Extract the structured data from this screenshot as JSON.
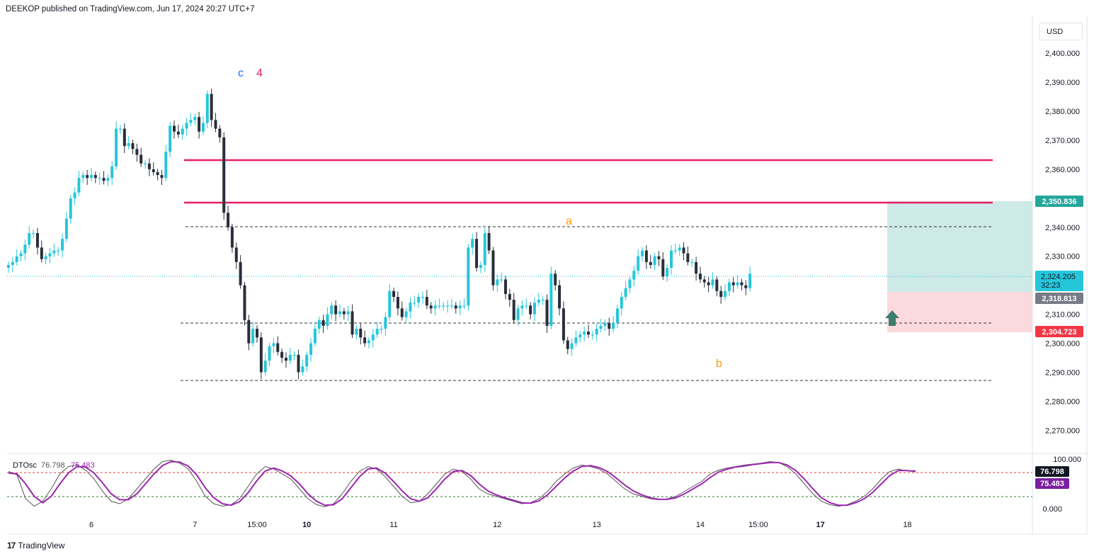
{
  "header": {
    "text": "DEEKOP published on TradingView.com, Jun 17, 2024 20:27 UTC+7"
  },
  "currency": "USD",
  "footer": {
    "logo_text": "TradingView",
    "logo_icon": "tradingview-logo-icon"
  },
  "colors": {
    "up": "#26c6da",
    "down": "#2a2e39",
    "resistance": "#e91e63",
    "target_zone": "#b2dfdb",
    "stop_zone": "#fbd5d9",
    "osc_k": "#555555",
    "osc_d": "#9c27b0",
    "wave_c": "#2962ff",
    "wave_4": "#e91e63",
    "wave_ab": "#ff9800"
  },
  "chart_data": [
    {
      "type": "candlestick",
      "title": "",
      "xlabel": "",
      "ylabel": "",
      "ylim": [
        2262,
        2413
      ],
      "grid": false,
      "y_ticks": [
        "2,400.000",
        "2,390.000",
        "2,380.000",
        "2,370.000",
        "2,360.000",
        "2,350.000",
        "2,340.000",
        "2,330.000",
        "2,310.000",
        "2,300.000",
        "2,290.000",
        "2,280.000",
        "2,270.000"
      ],
      "x_ticks": [
        {
          "label": "6",
          "i": 20,
          "bold": false
        },
        {
          "label": "7",
          "i": 45,
          "bold": false
        },
        {
          "label": "15:00",
          "i": 60,
          "bold": false
        },
        {
          "label": "10",
          "i": 72,
          "bold": true
        },
        {
          "label": "11",
          "i": 93,
          "bold": false
        },
        {
          "label": "12",
          "i": 118,
          "bold": false
        },
        {
          "label": "13",
          "i": 142,
          "bold": false
        },
        {
          "label": "14",
          "i": 167,
          "bold": false
        },
        {
          "label": "15:00",
          "i": 181,
          "bold": false
        },
        {
          "label": "17",
          "i": 196,
          "bold": true
        },
        {
          "label": "18",
          "i": 217,
          "bold": false
        }
      ],
      "closes": [
        2327,
        2328,
        2330,
        2331,
        2334,
        2338,
        2338,
        2333,
        2329,
        2330,
        2331,
        2332,
        2332,
        2336,
        2343,
        2350,
        2352,
        2357,
        2358,
        2357,
        2358,
        2357,
        2357,
        2356,
        2357,
        2361,
        2374,
        2374,
        2368,
        2369,
        2367,
        2365,
        2362,
        2362,
        2360,
        2359,
        2358,
        2357,
        2366,
        2375,
        2373,
        2372,
        2374,
        2376,
        2377,
        2378,
        2373,
        2376,
        2386,
        2377,
        2374,
        2371,
        2345,
        2340,
        2333,
        2328,
        2320,
        2308,
        2300,
        2305,
        2302,
        2290,
        2294,
        2299,
        2300,
        2297,
        2295,
        2294,
        2296,
        2296,
        2290,
        2292,
        2296,
        2300,
        2305,
        2308,
        2306,
        2310,
        2313,
        2310,
        2311,
        2310,
        2311,
        2303,
        2305,
        2302,
        2300,
        2301,
        2303,
        2305,
        2305,
        2309,
        2318,
        2316,
        2312,
        2309,
        2311,
        2314,
        2314,
        2316,
        2316,
        2313,
        2312,
        2313,
        2313,
        2313,
        2313,
        2313,
        2312,
        2313,
        2313,
        2333,
        2336,
        2326,
        2327,
        2338,
        2332,
        2320,
        2322,
        2322,
        2317,
        2315,
        2308,
        2312,
        2313,
        2313,
        2310,
        2314,
        2315,
        2315,
        2306,
        2324,
        2320,
        2312,
        2301,
        2298,
        2300,
        2302,
        2303,
        2304,
        2303,
        2303,
        2305,
        2306,
        2307,
        2305,
        2307,
        2312,
        2316,
        2319,
        2322,
        2325,
        2330,
        2332,
        2328,
        2327,
        2330,
        2329,
        2323,
        2326,
        2332,
        2332,
        2333,
        2331,
        2328,
        2328,
        2324,
        2322,
        2321,
        2320,
        2322,
        2318,
        2316,
        2318,
        2321,
        2320,
        2321,
        2320,
        2319,
        2324
      ],
      "series": [
        {
          "name": "DTOsc",
          "value_label": "76.798",
          "values": [
            75,
            68,
            20,
            5,
            15,
            40,
            70,
            85,
            88,
            78,
            60,
            35,
            15,
            10,
            20,
            40,
            60,
            80,
            95,
            98,
            92,
            80,
            55,
            25,
            10,
            5,
            8,
            20,
            45,
            70,
            85,
            80,
            70,
            60,
            40,
            20,
            8,
            4,
            10,
            30,
            55,
            75,
            85,
            80,
            65,
            45,
            25,
            12,
            15,
            30,
            50,
            70,
            80,
            75,
            60,
            40,
            30,
            25,
            20,
            15,
            10,
            12,
            20,
            35,
            55,
            70,
            82,
            88,
            85,
            80,
            70,
            55,
            40,
            30,
            25,
            20,
            18,
            20,
            25,
            35,
            45,
            55,
            70,
            78,
            82,
            85,
            88,
            90,
            92,
            95,
            93,
            85,
            70,
            50,
            30,
            15,
            8,
            5,
            8,
            15,
            25,
            40,
            60,
            75,
            80,
            76,
            77
          ]
        },
        {
          "name": "",
          "value_label": "75.483",
          "values": [
            72,
            70,
            50,
            25,
            12,
            25,
            50,
            72,
            85,
            84,
            72,
            52,
            30,
            18,
            18,
            30,
            50,
            70,
            87,
            95,
            94,
            86,
            68,
            42,
            22,
            10,
            7,
            14,
            32,
            56,
            76,
            82,
            76,
            66,
            50,
            30,
            15,
            7,
            8,
            20,
            42,
            64,
            80,
            82,
            72,
            55,
            36,
            20,
            15,
            22,
            40,
            60,
            75,
            77,
            67,
            50,
            36,
            28,
            22,
            17,
            12,
            11,
            16,
            28,
            45,
            62,
            76,
            85,
            87,
            83,
            75,
            62,
            48,
            36,
            28,
            22,
            19,
            19,
            22,
            30,
            40,
            50,
            63,
            74,
            80,
            84,
            86,
            89,
            91,
            93,
            93,
            88,
            77,
            60,
            40,
            22,
            12,
            7,
            7,
            12,
            20,
            33,
            50,
            67,
            77,
            77,
            75
          ]
        }
      ]
    }
  ],
  "labels": {
    "wave_c": "c",
    "wave_4": "4",
    "wave_a": "a",
    "wave_b": "b",
    "badge_target": "2,350.836",
    "badge_current": "2,324.205",
    "badge_countdown": "32:23",
    "badge_entry": "2,318.813",
    "badge_stop": "2,304.723",
    "osc_name": "DTOsc",
    "osc_ticks": [
      "100.000",
      "0.000"
    ]
  }
}
